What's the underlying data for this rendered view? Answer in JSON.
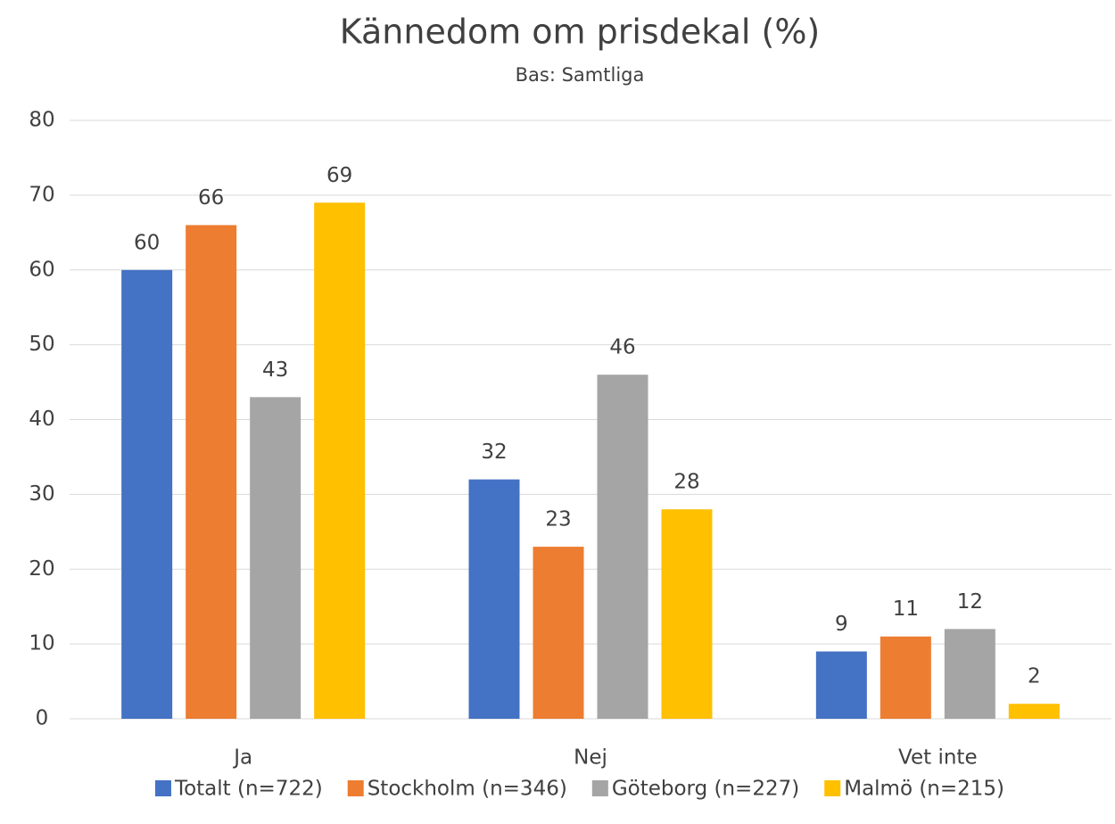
{
  "chart_data": {
    "type": "bar",
    "title": "Kännedom om prisdekal (%)",
    "subtitle": "Bas: Samtliga",
    "categories": [
      "Ja",
      "Nej",
      "Vet inte"
    ],
    "series": [
      {
        "name": "Totalt (n=722)",
        "color": "#4472c4",
        "values": [
          60,
          32,
          9
        ]
      },
      {
        "name": "Stockholm (n=346)",
        "color": "#ed7d31",
        "values": [
          66,
          23,
          11
        ]
      },
      {
        "name": "Göteborg (n=227)",
        "color": "#a5a5a5",
        "values": [
          43,
          46,
          12
        ]
      },
      {
        "name": "Malmö (n=215)",
        "color": "#ffc000",
        "values": [
          69,
          28,
          2
        ]
      }
    ],
    "ylim": [
      0,
      80
    ],
    "yticks": [
      0,
      10,
      20,
      30,
      40,
      50,
      60,
      70,
      80
    ],
    "grid": true,
    "legend": "bottom"
  }
}
